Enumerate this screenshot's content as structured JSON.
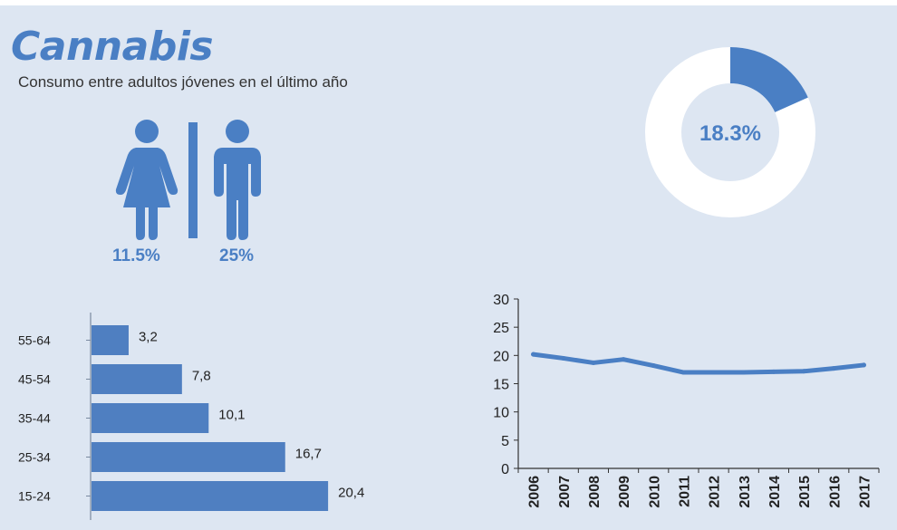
{
  "header": {
    "title": "Cannabis",
    "subtitle": "Consumo entre adultos jóvenes en el último año"
  },
  "gender": {
    "female_pct": "11.5%",
    "male_pct": "25%",
    "female_icon": "female-person-icon",
    "male_icon": "male-person-icon"
  },
  "colors": {
    "accent": "#4a7fc4",
    "bar": "#4f7fc1",
    "background": "#dde6f2",
    "text": "#222222"
  },
  "chart_data": [
    {
      "type": "pie",
      "variant": "donut",
      "values": [
        18.3,
        81.7
      ],
      "label": "18.3%"
    },
    {
      "type": "bar",
      "orientation": "horizontal",
      "categories": [
        "55-64",
        "45-54",
        "35-44",
        "25-34",
        "15-24"
      ],
      "values": [
        3.2,
        7.8,
        10.1,
        16.7,
        20.4
      ],
      "value_labels": [
        "3,2",
        "7,8",
        "10,1",
        "16,7",
        "20,4"
      ],
      "xlim": [
        0,
        21
      ]
    },
    {
      "type": "line",
      "x": [
        "2006",
        "2007",
        "2008",
        "2009",
        "2010",
        "2011",
        "2012",
        "2013",
        "2014",
        "2015",
        "2016",
        "2017"
      ],
      "y": [
        20.2,
        19.5,
        18.7,
        19.3,
        18.2,
        17.0,
        17.0,
        17.0,
        17.1,
        17.2,
        17.7,
        18.3
      ],
      "ylim": [
        0,
        30
      ],
      "yticks": [
        0,
        5,
        10,
        15,
        20,
        25,
        30
      ]
    }
  ]
}
